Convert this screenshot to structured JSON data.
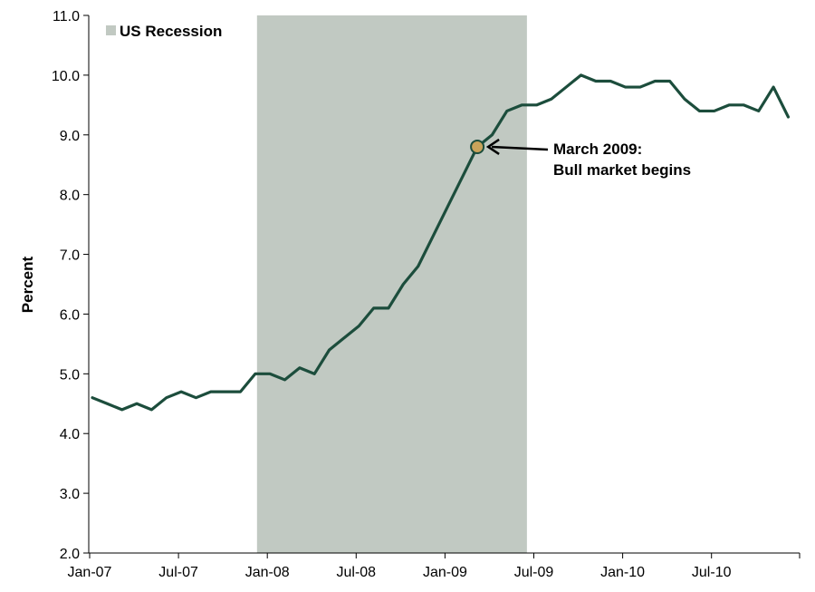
{
  "chart_data": {
    "type": "line",
    "title": "",
    "xlabel": "",
    "ylabel": "Percent",
    "ylim": [
      2.0,
      11.0
    ],
    "yticks": [
      "2.0",
      "3.0",
      "4.0",
      "5.0",
      "6.0",
      "7.0",
      "8.0",
      "9.0",
      "10.0",
      "11.0"
    ],
    "xticks": [
      "Jan-07",
      "Jul-07",
      "Jan-08",
      "Jul-08",
      "Jan-09",
      "Jul-09",
      "Jan-10",
      "Jul-10"
    ],
    "grid": false,
    "x": [
      "2007-01",
      "2007-02",
      "2007-03",
      "2007-04",
      "2007-05",
      "2007-06",
      "2007-07",
      "2007-08",
      "2007-09",
      "2007-10",
      "2007-11",
      "2007-12",
      "2008-01",
      "2008-02",
      "2008-03",
      "2008-04",
      "2008-05",
      "2008-06",
      "2008-07",
      "2008-08",
      "2008-09",
      "2008-10",
      "2008-11",
      "2008-12",
      "2009-01",
      "2009-02",
      "2009-03",
      "2009-04",
      "2009-05",
      "2009-06",
      "2009-07",
      "2009-08",
      "2009-09",
      "2009-10",
      "2009-11",
      "2009-12",
      "2010-01",
      "2010-02",
      "2010-03",
      "2010-04",
      "2010-05",
      "2010-06",
      "2010-07",
      "2010-08",
      "2010-09",
      "2010-10",
      "2010-11",
      "2010-12"
    ],
    "series": [
      {
        "color": "#1c4d3c",
        "values": [
          4.6,
          4.5,
          4.4,
          4.5,
          4.4,
          4.6,
          4.7,
          4.6,
          4.7,
          4.7,
          4.7,
          5.0,
          5.0,
          4.9,
          5.1,
          5.0,
          5.4,
          5.6,
          5.8,
          6.1,
          6.1,
          6.5,
          6.8,
          7.3,
          7.8,
          8.3,
          8.8,
          9.0,
          9.4,
          9.5,
          9.5,
          9.6,
          9.8,
          10.0,
          9.9,
          9.9,
          9.8,
          9.8,
          9.9,
          9.9,
          9.6,
          9.4,
          9.4,
          9.5,
          9.5,
          9.4,
          9.8,
          9.3
        ]
      }
    ],
    "recession": {
      "label": "US Recession",
      "start": "2007-12",
      "end": "2009-06",
      "color": "#c1c9c2"
    },
    "annotation": {
      "point": "2009-03",
      "value": 8.8,
      "lines": [
        "March 2009:",
        "Bull market begins"
      ],
      "marker_color": "#c9a35a"
    },
    "legend_position": "top-left"
  }
}
